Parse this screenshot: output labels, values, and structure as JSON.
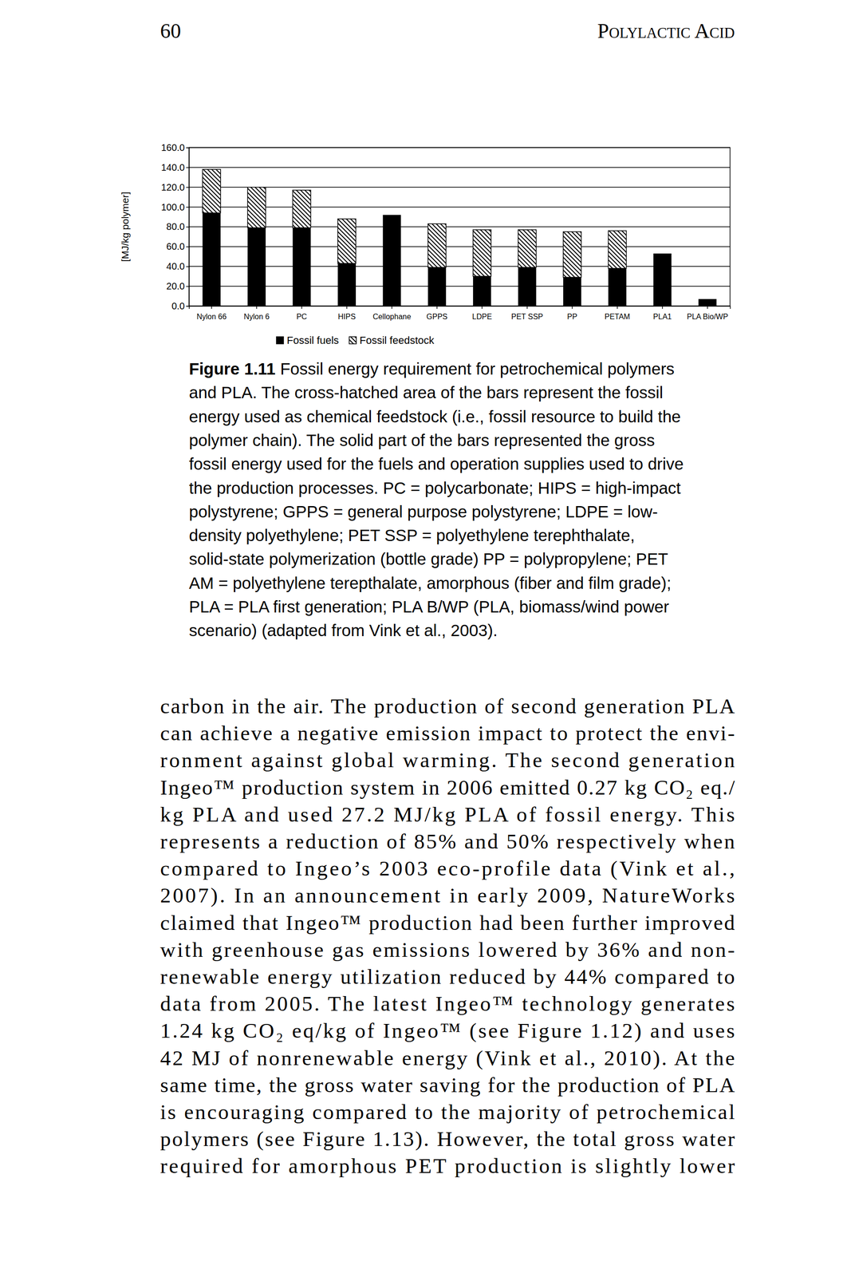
{
  "header": {
    "page_number": "60",
    "running_title": "Polylactic Acid"
  },
  "chart_data": {
    "type": "bar",
    "stacked": true,
    "y_label": "[MJ/kg polymer]",
    "categories": [
      "Nylon 66",
      "Nylon 6",
      "PC",
      "HIPS",
      "Cellophane",
      "GPPS",
      "LDPE",
      "PET SSP",
      "PP",
      "PETAM",
      "PLA1",
      "PLA Bio/WP"
    ],
    "series": [
      {
        "name": "Fossil fuels",
        "color": "#000000",
        "values": [
          94,
          79,
          79,
          43,
          92,
          39,
          30,
          39,
          29,
          38,
          53,
          7
        ]
      },
      {
        "name": "Fossil feedstock",
        "color": "#000000",
        "values": [
          44,
          41,
          38,
          45,
          0,
          44,
          47,
          38,
          46,
          38,
          0,
          0
        ]
      }
    ],
    "ylim": [
      0,
      160
    ],
    "yticks": [
      {
        "value": 0,
        "label": "0.0"
      },
      {
        "value": 20,
        "label": "20.0"
      },
      {
        "value": 40,
        "label": "40.0"
      },
      {
        "value": 60,
        "label": "60.0"
      },
      {
        "value": 80,
        "label": "80.0"
      },
      {
        "value": 100,
        "label": "100.0"
      },
      {
        "value": 120,
        "label": "120.0"
      },
      {
        "value": 140,
        "label": "140.0"
      },
      {
        "value": 160,
        "label": "160.0"
      }
    ],
    "grid": true,
    "legend": "bottom"
  },
  "caption": {
    "label": "Figure 1.11",
    "lines": [
      "Fossil energy requirement for petrochemical polymers",
      "and PLA. The cross-hatched area of the bars represent the fossil",
      "energy used as chemical feedstock (i.e., fossil resource to build the",
      "polymer chain). The solid part of the bars represented the gross",
      "fossil energy used for the fuels and operation supplies used to drive",
      "the production processes. PC = polycarbonate; HIPS = high-impact",
      "polystyrene; GPPS = general purpose polystyrene; LDPE = low-",
      "density polyethylene; PET SSP = polyethylene terephthalate,",
      "solid-state polymerization (bottle grade) PP = polypropylene; PET",
      "AM = polyethylene terepthalate, amorphous (fiber and film grade);",
      "PLA = PLA first generation; PLA B/WP (PLA, biomass/wind power",
      "scenario) (adapted from Vink et al., 2003)."
    ]
  },
  "body": {
    "lines": [
      "carbon in the air. The production of second generation PLA",
      "can achieve a negative emission impact to protect the envi-",
      "ronment against global warming. The second generation",
      "Ingeo™ production system in 2006 emitted 0.27 kg CO₂ eq./",
      "kg PLA and used 27.2 MJ/kg PLA of fossil energy. This",
      "represents a reduction of 85% and 50% respectively when",
      "compared to Ingeo’s 2003 eco-profile data (Vink et al.,",
      "2007). In an announcement in early 2009, NatureWorks",
      "claimed that Ingeo™ production had been further improved",
      "with greenhouse gas emissions lowered by 36% and non-",
      "renewable energy utilization reduced by 44% compared to",
      "data from 2005. The latest Ingeo™ technology generates",
      "1.24 kg CO₂ eq/kg of Ingeo™ (see Figure 1.12) and uses",
      "42 MJ of nonrenewable energy (Vink et al., 2010). At the",
      "same time, the gross water saving for the production of PLA",
      "is encouraging compared to the majority of petrochemical",
      "polymers (see Figure 1.13). However, the total gross water",
      "required for amorphous PET production is slightly lower"
    ]
  }
}
